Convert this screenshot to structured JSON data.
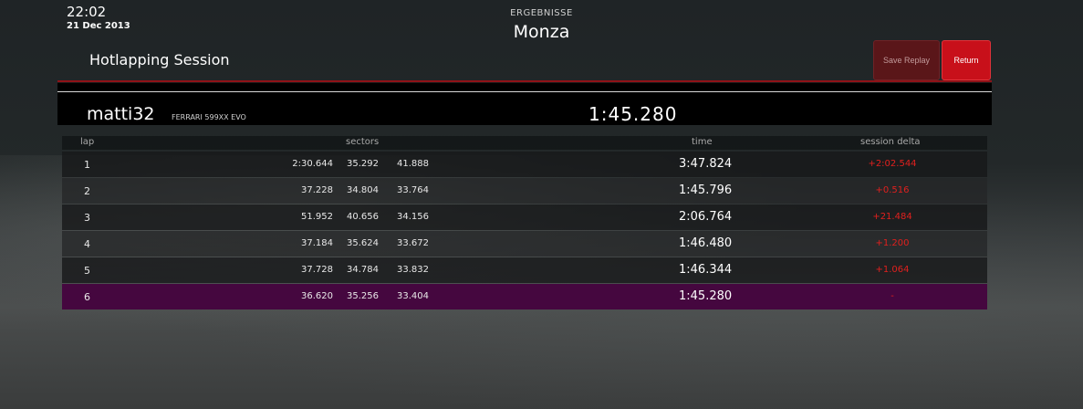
{
  "clock": {
    "time": "22:02",
    "date": "21 Dec 2013"
  },
  "header": {
    "subtitle": "ERGEBNISSE",
    "track": "Monza"
  },
  "session": {
    "title": "Hotlapping Session"
  },
  "buttons": {
    "save_replay": "Save Replay",
    "return": "Return"
  },
  "driver": {
    "name": "matti32",
    "car": "FERRARI 599XX EVO",
    "best_time": "1:45.280"
  },
  "columns": {
    "lap": "lap",
    "sectors": "sectors",
    "time": "time",
    "delta": "session delta"
  },
  "laps": [
    {
      "lap": "1",
      "s1": "2:30.644",
      "s2": "35.292",
      "s3": "41.888",
      "time": "3:47.824",
      "delta": "+2:02.544"
    },
    {
      "lap": "2",
      "s1": "37.228",
      "s2": "34.804",
      "s3": "33.764",
      "time": "1:45.796",
      "delta": "+0.516"
    },
    {
      "lap": "3",
      "s1": "51.952",
      "s2": "40.656",
      "s3": "34.156",
      "time": "2:06.764",
      "delta": "+21.484"
    },
    {
      "lap": "4",
      "s1": "37.184",
      "s2": "35.624",
      "s3": "33.672",
      "time": "1:46.480",
      "delta": "+1.200"
    },
    {
      "lap": "5",
      "s1": "37.728",
      "s2": "34.784",
      "s3": "33.832",
      "time": "1:46.344",
      "delta": "+1.064"
    },
    {
      "lap": "6",
      "s1": "36.620",
      "s2": "35.256",
      "s3": "33.404",
      "time": "1:45.280",
      "delta": "-"
    }
  ],
  "colors": {
    "accent_red": "#c8101a",
    "best_row": "#45073f",
    "delta_red": "#e0201e"
  }
}
